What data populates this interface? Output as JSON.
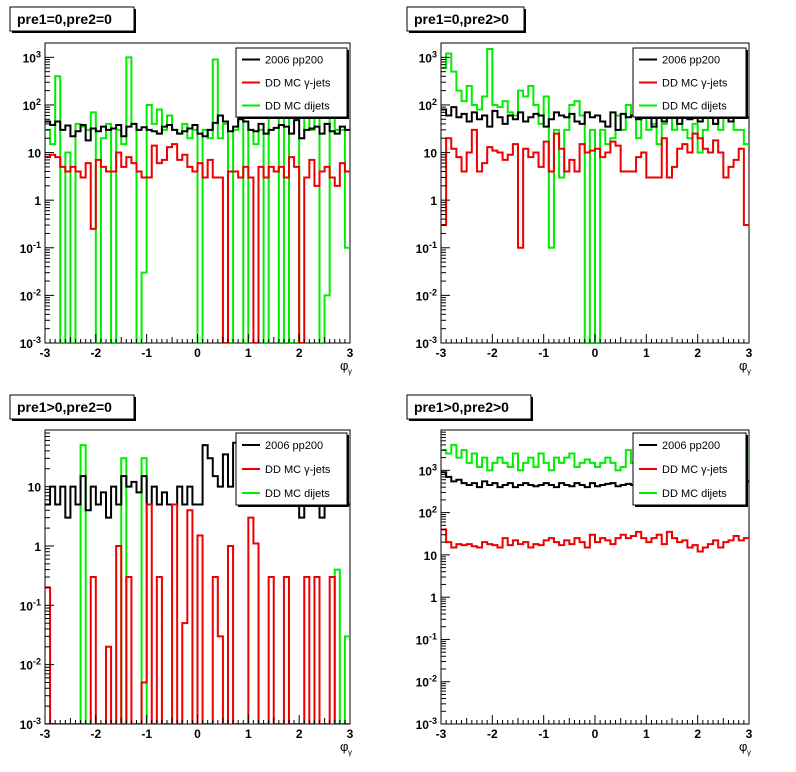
{
  "legend_labels": [
    "2006 pp200",
    "DD MC γ-jets",
    "DD MC dijets"
  ],
  "colors": {
    "data": "#000000",
    "gjets": "#ee0000",
    "dijets": "#00ee00"
  },
  "chart_data": [
    {
      "type": "line",
      "title": "pre1=0,pre2=0",
      "xlabel": "φ",
      "xlabel_sub": "γ",
      "xlim": [
        -3,
        3
      ],
      "ylim": [
        0.001,
        2000
      ],
      "yscale": "log",
      "xticks": [
        "-3",
        "-2",
        "-1",
        "0",
        "1",
        "2",
        "3"
      ],
      "yticks": [
        "10-3",
        "10-2",
        "10-1",
        "1",
        "10",
        "102",
        "103"
      ],
      "legend": "top-right",
      "series": [
        {
          "name": "2006 pp200",
          "values": [
            45,
            38,
            45,
            30,
            37,
            22,
            28,
            38,
            18,
            32,
            28,
            35,
            30,
            32,
            38,
            22,
            35,
            40,
            30,
            34,
            30,
            28,
            25,
            35,
            38,
            30,
            25,
            28,
            32,
            38,
            25,
            22,
            30,
            42,
            60,
            45,
            28,
            35,
            50,
            45,
            30,
            28,
            40,
            25,
            30,
            33,
            38,
            35,
            25,
            48,
            20,
            30,
            32,
            35,
            25,
            40,
            28,
            25,
            35,
            30
          ]
        },
        {
          "name": "DD MC γ-jets",
          "values": [
            8,
            9,
            8,
            5,
            4,
            5,
            4,
            3,
            6,
            0.25,
            7,
            5,
            4,
            4,
            10,
            5,
            8,
            6,
            4,
            3,
            3,
            14,
            6,
            7,
            13,
            15,
            7,
            9,
            5,
            4,
            6,
            3,
            7,
            3,
            3,
            0.001,
            4,
            4,
            3,
            5,
            3,
            0.001,
            5,
            3,
            5,
            4,
            5,
            3,
            8,
            5,
            0.001,
            3,
            7,
            2,
            4,
            5,
            3,
            2,
            6,
            4
          ]
        },
        {
          "name": "DD MC dijets",
          "values": [
            30,
            15,
            400,
            0.001,
            10,
            0.001,
            40,
            35,
            30,
            70,
            0.001,
            20,
            40,
            0.001,
            30,
            15,
            1000,
            40,
            0.001,
            0.03,
            100,
            40,
            80,
            30,
            60,
            30,
            25,
            40,
            20,
            30,
            0.001,
            30,
            20,
            900,
            20,
            40,
            0.001,
            30,
            70,
            0.001,
            30,
            15,
            30,
            0.001,
            900,
            100,
            0.001,
            80,
            0.001,
            0.001,
            20,
            70,
            30,
            100,
            0.001,
            0.01,
            60,
            30,
            30,
            0.1
          ]
        }
      ]
    },
    {
      "type": "line",
      "title": "pre1=0,pre2>0",
      "xlabel": "φ",
      "xlabel_sub": "γ",
      "xlim": [
        -3,
        3
      ],
      "ylim": [
        0.001,
        2000
      ],
      "yscale": "log",
      "xticks": [
        "-3",
        "-2",
        "-1",
        "0",
        "1",
        "2",
        "3"
      ],
      "yticks": [
        "10-3",
        "10-2",
        "10-1",
        "1",
        "10",
        "102",
        "103"
      ],
      "legend": "top-right",
      "series": [
        {
          "name": "2006 pp200",
          "values": [
            80,
            60,
            90,
            55,
            65,
            45,
            70,
            50,
            60,
            35,
            75,
            55,
            40,
            60,
            50,
            70,
            45,
            55,
            65,
            60,
            35,
            50,
            70,
            60,
            55,
            65,
            45,
            40,
            70,
            55,
            60,
            45,
            35,
            70,
            30,
            65,
            55,
            60,
            50,
            75,
            55,
            35,
            60,
            45,
            65,
            55,
            40,
            70,
            50,
            60,
            45,
            55,
            65,
            40,
            60,
            55,
            45,
            70,
            60,
            55
          ]
        },
        {
          "name": "DD MC γ-jets",
          "values": [
            0.3,
            20,
            12,
            8,
            4,
            10,
            30,
            4,
            6,
            13,
            11,
            10,
            7,
            9,
            15,
            0.1,
            12,
            8,
            10,
            5,
            17,
            4,
            25,
            12,
            4,
            7,
            4,
            15,
            10,
            11,
            12,
            8,
            10,
            17,
            14,
            4,
            4,
            4,
            8,
            10,
            3,
            3,
            3,
            20,
            3,
            5,
            12,
            15,
            10,
            25,
            20,
            12,
            10,
            18,
            10,
            3,
            5,
            7,
            12,
            0.3
          ]
        },
        {
          "name": "DD MC dijets",
          "values": [
            600,
            1200,
            500,
            200,
            120,
            250,
            100,
            80,
            150,
            1500,
            100,
            90,
            120,
            70,
            60,
            200,
            150,
            250,
            100,
            40,
            150,
            0.1,
            30,
            3,
            30,
            100,
            120,
            60,
            0.001,
            30,
            0.001,
            30,
            15,
            20,
            60,
            30,
            100,
            60,
            20,
            80,
            30,
            40,
            15,
            40,
            80,
            30,
            60,
            30,
            20,
            40,
            10,
            30,
            60,
            40,
            30,
            80,
            60,
            30,
            30,
            15
          ]
        }
      ]
    },
    {
      "type": "line",
      "title": "pre1>0,pre2=0",
      "xlabel": "φ",
      "xlabel_sub": "γ",
      "xlim": [
        -3,
        3
      ],
      "ylim": [
        0.001,
        90
      ],
      "yscale": "log",
      "xticks": [
        "-3",
        "-2",
        "-1",
        "0",
        "1",
        "2",
        "3"
      ],
      "yticks": [
        "10-3",
        "10-2",
        "10-1",
        "1",
        "10"
      ],
      "legend": "top-right",
      "series": [
        {
          "name": "2006 pp200",
          "values": [
            5,
            10,
            5,
            10,
            3,
            10,
            5,
            15,
            4,
            10,
            5,
            8,
            3,
            10,
            5,
            15,
            10,
            12,
            8,
            15,
            5,
            10,
            5,
            8,
            5,
            5,
            10,
            5,
            10,
            5,
            5,
            50,
            30,
            15,
            10,
            35,
            10,
            55,
            30,
            15,
            10,
            5,
            10,
            5,
            15,
            10,
            5,
            10,
            5,
            10,
            3,
            10,
            5,
            15,
            3,
            10,
            5,
            5,
            10,
            5
          ]
        },
        {
          "name": "DD MC γ-jets",
          "values": [
            0.2,
            0.001,
            0.001,
            0.001,
            0.001,
            0.001,
            0.001,
            0.001,
            0.001,
            0.3,
            0.001,
            0.001,
            0.02,
            0.001,
            1,
            0.001,
            0.3,
            0.001,
            0.001,
            0.005,
            5,
            0.001,
            0.3,
            0.001,
            0.001,
            5,
            0.001,
            0.05,
            4,
            0.001,
            1.5,
            0.001,
            0.001,
            0.3,
            0.03,
            0.001,
            1,
            0.001,
            0.001,
            0.001,
            3,
            1.1,
            0.001,
            0.001,
            0.3,
            0.001,
            0.001,
            0.3,
            0.001,
            0.001,
            0.001,
            0.3,
            0.001,
            0.3,
            0.001,
            0.001,
            0.3,
            0.001,
            0.001,
            0.001
          ]
        },
        {
          "name": "DD MC dijets",
          "values": [
            0.001,
            0.001,
            0.001,
            0.001,
            0.001,
            0.001,
            0.001,
            50,
            0.001,
            0.001,
            0.001,
            0.001,
            0.001,
            0.001,
            0.001,
            30,
            0.001,
            0.001,
            0.001,
            30,
            0.001,
            0.001,
            0.001,
            0.001,
            0.001,
            0.001,
            0.001,
            0.001,
            0.001,
            0.001,
            0.001,
            0.001,
            0.001,
            0.001,
            0.001,
            0.001,
            0.001,
            0.001,
            0.001,
            0.001,
            0.001,
            0.001,
            0.001,
            0.001,
            0.001,
            0.001,
            0.001,
            0.001,
            0.001,
            0.001,
            0.001,
            0.001,
            0.001,
            0.001,
            0.001,
            0.001,
            0.001,
            0.4,
            0.001,
            0.03
          ]
        }
      ]
    },
    {
      "type": "line",
      "title": "pre1>0,pre2>0",
      "xlabel": "φ",
      "xlabel_sub": "γ",
      "xlim": [
        -3,
        3
      ],
      "ylim": [
        0.001,
        9000
      ],
      "yscale": "log",
      "xticks": [
        "-3",
        "-2",
        "-1",
        "0",
        "1",
        "2",
        "3"
      ],
      "yticks": [
        "10-3",
        "10-2",
        "10-1",
        "1",
        "10",
        "102",
        "103"
      ],
      "legend": "top-right",
      "series": [
        {
          "name": "2006 pp200",
          "values": [
            900,
            700,
            550,
            600,
            500,
            450,
            500,
            400,
            550,
            450,
            500,
            400,
            450,
            500,
            400,
            450,
            500,
            450,
            420,
            450,
            500,
            450,
            400,
            500,
            450,
            420,
            500,
            450,
            400,
            500,
            420,
            450,
            480,
            500,
            420,
            450,
            480,
            450,
            500,
            480,
            500,
            550,
            500,
            600,
            500,
            550,
            520,
            500,
            600,
            550,
            500,
            600,
            550,
            600,
            500,
            600,
            550,
            500,
            600,
            550
          ]
        },
        {
          "name": "DD MC γ-jets",
          "values": [
            40,
            20,
            15,
            18,
            17,
            18,
            16,
            15,
            20,
            18,
            17,
            15,
            25,
            17,
            22,
            18,
            20,
            15,
            18,
            17,
            22,
            25,
            20,
            17,
            22,
            18,
            25,
            20,
            15,
            30,
            20,
            25,
            22,
            18,
            25,
            30,
            25,
            28,
            35,
            25,
            20,
            25,
            30,
            18,
            35,
            25,
            20,
            22,
            15,
            17,
            12,
            15,
            18,
            22,
            15,
            20,
            22,
            28,
            22,
            25
          ]
        },
        {
          "name": "DD MC dijets",
          "values": [
            3000,
            2500,
            4000,
            2000,
            3000,
            1500,
            2500,
            1200,
            2000,
            1000,
            1500,
            2000,
            1500,
            1200,
            2500,
            1000,
            1500,
            2000,
            1200,
            2500,
            1500,
            1000,
            2000,
            1500,
            2000,
            2500,
            1200,
            1500,
            1800,
            1500,
            1200,
            1500,
            2000,
            1500,
            1000,
            1200,
            3000,
            1500,
            1200,
            2500,
            1500,
            1000,
            2000,
            1200,
            1500,
            2000,
            800,
            1500,
            1000,
            2500,
            3000,
            1500,
            2000,
            1200,
            2500,
            1500,
            1000,
            3000,
            1500,
            2000
          ]
        }
      ]
    }
  ]
}
